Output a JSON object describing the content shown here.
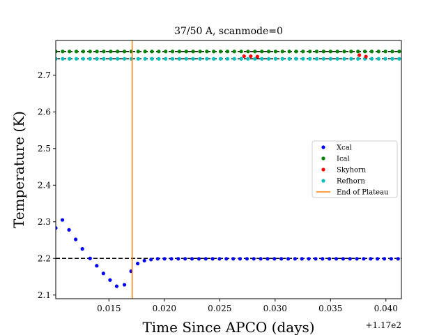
{
  "chart_data": {
    "type": "scatter",
    "title": "37/50 A, scanmode=0",
    "xlabel": "Time Since APCO (days)",
    "ylabel": "Temperature (K)",
    "x_offset_label": "+1.17e2",
    "xlim": [
      0.0102,
      0.0414
    ],
    "ylim": [
      2.09,
      2.795
    ],
    "x_ticks": [
      0.015,
      0.02,
      0.025,
      0.03,
      0.035,
      0.04
    ],
    "x_tick_labels": [
      "0.015",
      "0.020",
      "0.025",
      "0.030",
      "0.035",
      "0.040"
    ],
    "y_ticks": [
      2.1,
      2.2,
      2.3,
      2.4,
      2.5,
      2.6,
      2.7
    ],
    "y_tick_labels": [
      "2.1",
      "2.2",
      "2.3",
      "2.4",
      "2.5",
      "2.6",
      "2.7"
    ],
    "grid": false,
    "legend_position": "center-right",
    "reference_lines": [
      {
        "type": "hline",
        "y": 2.2,
        "style": "dashed",
        "color": "#000000"
      },
      {
        "type": "hline",
        "y": 2.765,
        "style": "dashed",
        "color": "#000000"
      },
      {
        "type": "hline",
        "y": 2.745,
        "style": "dashed",
        "color": "#000000"
      }
    ],
    "series": [
      {
        "name": "Xcal",
        "color": "#0000ff",
        "marker": "dot",
        "x": [
          0.0102,
          0.0108,
          0.0114,
          0.012,
          0.0126,
          0.0133,
          0.0139,
          0.0145,
          0.0151,
          0.0157,
          0.0164,
          0.017,
          0.0176,
          0.0182,
          0.0188
        ],
        "y": [
          2.283,
          2.305,
          2.278,
          2.252,
          2.226,
          2.2,
          2.18,
          2.159,
          2.141,
          2.124,
          2.128,
          2.165,
          2.186,
          2.194,
          2.197
        ],
        "tail_start": 0.0194,
        "tail_step": 0.00062,
        "tail_end": 0.0414,
        "tail_y": 2.199
      },
      {
        "name": "Ical",
        "color": "#008000",
        "marker": "dot",
        "start": 0.0102,
        "step": 0.00062,
        "end": 0.0414,
        "y": 2.765
      },
      {
        "name": "Skyhorn",
        "color": "#ff0000",
        "marker": "dot",
        "x": [
          0.0272,
          0.0278,
          0.0284,
          0.0376,
          0.0382
        ],
        "y": [
          2.752,
          2.752,
          2.751,
          2.755,
          2.751
        ]
      },
      {
        "name": "Refhorn",
        "color": "#00bfbf",
        "marker": "dot",
        "start": 0.0102,
        "step": 0.00062,
        "end": 0.0414,
        "y": 2.745
      },
      {
        "name": "End of Plateau",
        "color": "#ff7f0e",
        "marker": "vline",
        "x": 0.0171
      }
    ]
  }
}
